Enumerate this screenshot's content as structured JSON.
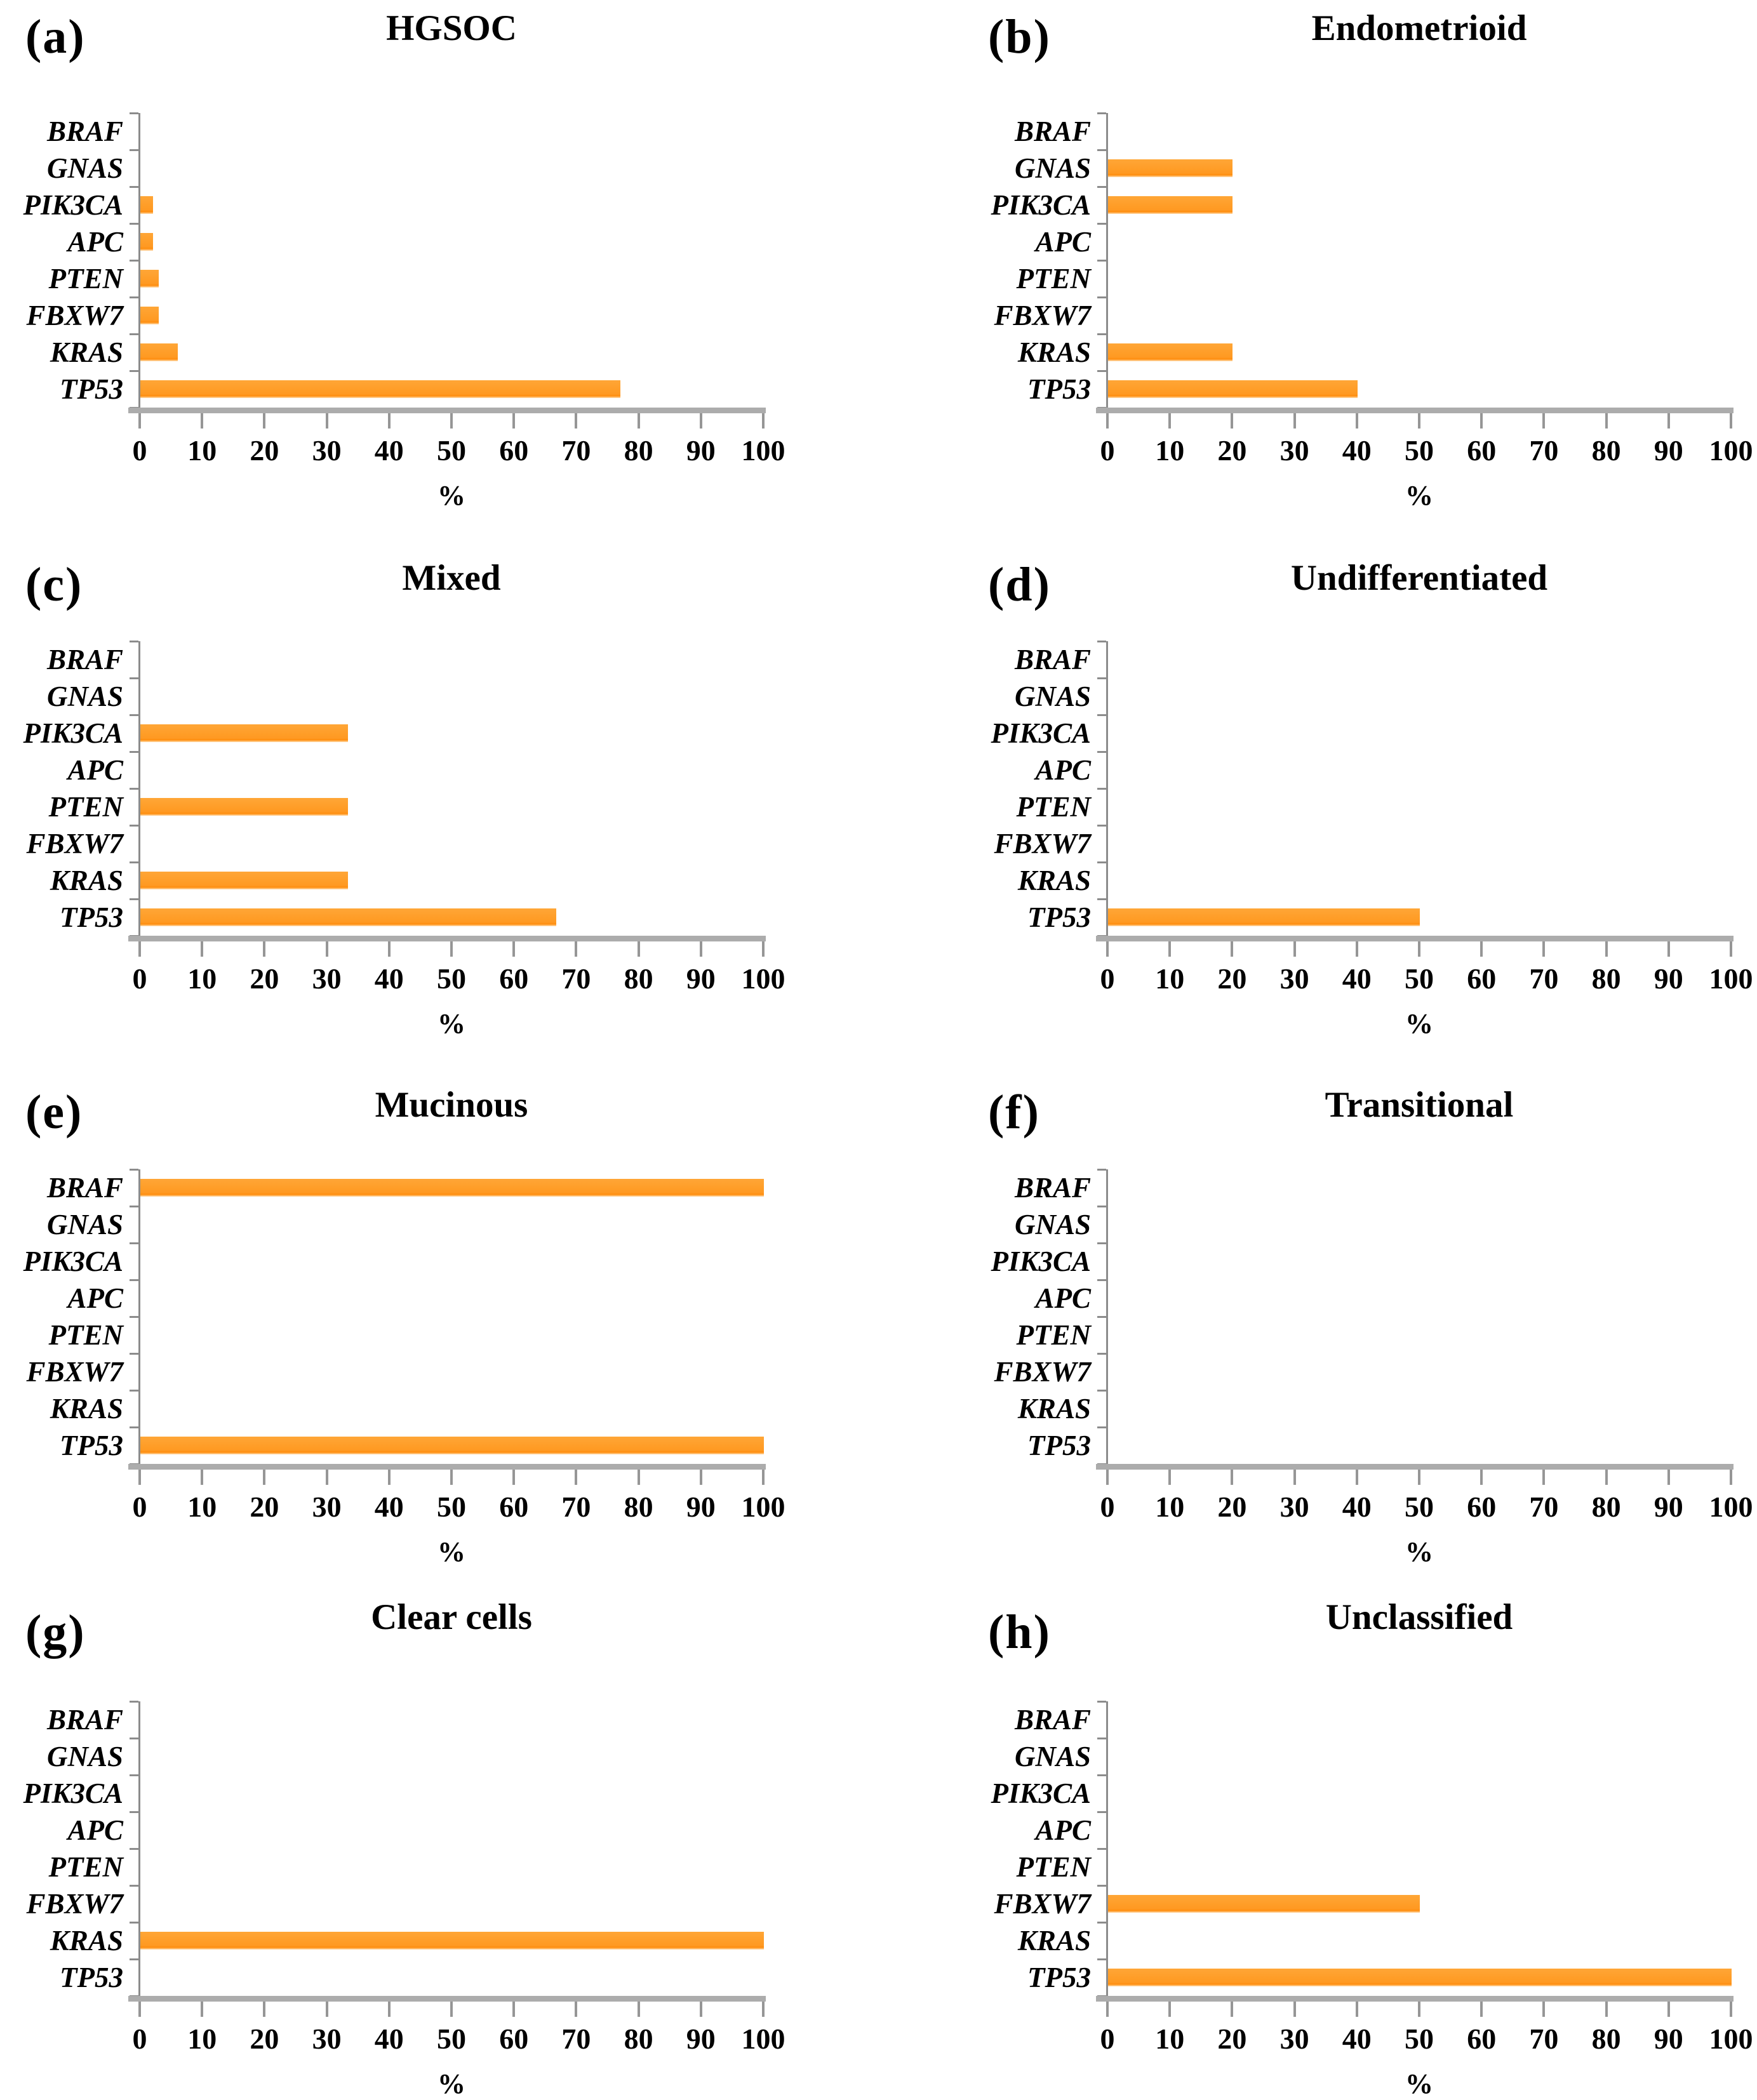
{
  "figure": {
    "description": "Eight horizontal bar charts of gene mutation frequency (%) by ovarian tumor histotype",
    "genes_top_to_bottom": [
      "BRAF",
      "GNAS",
      "PIK3CA",
      "APC",
      "PTEN",
      "FBXW7",
      "KRAS",
      "TP53"
    ],
    "bar_color": "#FF9D27",
    "axis_color": "#8C8C8C",
    "baseline_color": "#ACACAC",
    "text_color": "#000000",
    "xlabel": "%"
  },
  "chart_data": [
    {
      "panel_label": "(a)",
      "title": "HGSOC",
      "type": "bar",
      "orientation": "horizontal",
      "categories": [
        "BRAF",
        "GNAS",
        "PIK3CA",
        "APC",
        "PTEN",
        "FBXW7",
        "KRAS",
        "TP53"
      ],
      "values": [
        0,
        0,
        2,
        2,
        3,
        3,
        6,
        77
      ],
      "xlabel": "%",
      "xlim": [
        0,
        100
      ],
      "xticks": [
        0,
        10,
        20,
        30,
        40,
        50,
        60,
        70,
        80,
        90,
        100
      ],
      "grid": false,
      "legend": "none",
      "bar_color": "#FF9D27"
    },
    {
      "panel_label": "(b)",
      "title": "Endometrioid",
      "type": "bar",
      "orientation": "horizontal",
      "categories": [
        "BRAF",
        "GNAS",
        "PIK3CA",
        "APC",
        "PTEN",
        "FBXW7",
        "KRAS",
        "TP53"
      ],
      "values": [
        0,
        20,
        20,
        0,
        0,
        0,
        20,
        40
      ],
      "xlabel": "%",
      "xlim": [
        0,
        100
      ],
      "xticks": [
        0,
        10,
        20,
        30,
        40,
        50,
        60,
        70,
        80,
        90,
        100
      ],
      "grid": false,
      "legend": "none",
      "bar_color": "#FF9D27"
    },
    {
      "panel_label": "(c)",
      "title": "Mixed",
      "type": "bar",
      "orientation": "horizontal",
      "categories": [
        "BRAF",
        "GNAS",
        "PIK3CA",
        "APC",
        "PTEN",
        "FBXW7",
        "KRAS",
        "TP53"
      ],
      "values": [
        0,
        0,
        33.3,
        0,
        33.3,
        0,
        33.3,
        66.7
      ],
      "xlabel": "%",
      "xlim": [
        0,
        100
      ],
      "xticks": [
        0,
        10,
        20,
        30,
        40,
        50,
        60,
        70,
        80,
        90,
        100
      ],
      "grid": false,
      "legend": "none",
      "bar_color": "#FF9D27"
    },
    {
      "panel_label": "(d)",
      "title": "Undifferentiated",
      "type": "bar",
      "orientation": "horizontal",
      "categories": [
        "BRAF",
        "GNAS",
        "PIK3CA",
        "APC",
        "PTEN",
        "FBXW7",
        "KRAS",
        "TP53"
      ],
      "values": [
        0,
        0,
        0,
        0,
        0,
        0,
        0,
        50
      ],
      "xlabel": "%",
      "xlim": [
        0,
        100
      ],
      "xticks": [
        0,
        10,
        20,
        30,
        40,
        50,
        60,
        70,
        80,
        90,
        100
      ],
      "grid": false,
      "legend": "none",
      "bar_color": "#FF9D27"
    },
    {
      "panel_label": "(e)",
      "title": "Mucinous",
      "type": "bar",
      "orientation": "horizontal",
      "categories": [
        "BRAF",
        "GNAS",
        "PIK3CA",
        "APC",
        "PTEN",
        "FBXW7",
        "KRAS",
        "TP53"
      ],
      "values": [
        100,
        0,
        0,
        0,
        0,
        0,
        0,
        100
      ],
      "xlabel": "%",
      "xlim": [
        0,
        100
      ],
      "xticks": [
        0,
        10,
        20,
        30,
        40,
        50,
        60,
        70,
        80,
        90,
        100
      ],
      "grid": false,
      "legend": "none",
      "bar_color": "#FF9D27"
    },
    {
      "panel_label": "(f)",
      "title": "Transitional",
      "type": "bar",
      "orientation": "horizontal",
      "categories": [
        "BRAF",
        "GNAS",
        "PIK3CA",
        "APC",
        "PTEN",
        "FBXW7",
        "KRAS",
        "TP53"
      ],
      "values": [
        0,
        0,
        0,
        0,
        0,
        0,
        0,
        0
      ],
      "xlabel": "%",
      "xlim": [
        0,
        100
      ],
      "xticks": [
        0,
        10,
        20,
        30,
        40,
        50,
        60,
        70,
        80,
        90,
        100
      ],
      "grid": false,
      "legend": "none",
      "bar_color": "#FF9D27"
    },
    {
      "panel_label": "(g)",
      "title": "Clear cells",
      "type": "bar",
      "orientation": "horizontal",
      "categories": [
        "BRAF",
        "GNAS",
        "PIK3CA",
        "APC",
        "PTEN",
        "FBXW7",
        "KRAS",
        "TP53"
      ],
      "values": [
        0,
        0,
        0,
        0,
        0,
        0,
        100,
        0
      ],
      "xlabel": "%",
      "xlim": [
        0,
        100
      ],
      "xticks": [
        0,
        10,
        20,
        30,
        40,
        50,
        60,
        70,
        80,
        90,
        100
      ],
      "grid": false,
      "legend": "none",
      "bar_color": "#FF9D27"
    },
    {
      "panel_label": "(h)",
      "title": "Unclassified",
      "type": "bar",
      "orientation": "horizontal",
      "categories": [
        "BRAF",
        "GNAS",
        "PIK3CA",
        "APC",
        "PTEN",
        "FBXW7",
        "KRAS",
        "TP53"
      ],
      "values": [
        0,
        0,
        0,
        0,
        0,
        50,
        0,
        100
      ],
      "xlabel": "%",
      "xlim": [
        0,
        100
      ],
      "xticks": [
        0,
        10,
        20,
        30,
        40,
        50,
        60,
        70,
        80,
        90,
        100
      ],
      "grid": false,
      "legend": "none",
      "bar_color": "#FF9D27"
    }
  ]
}
